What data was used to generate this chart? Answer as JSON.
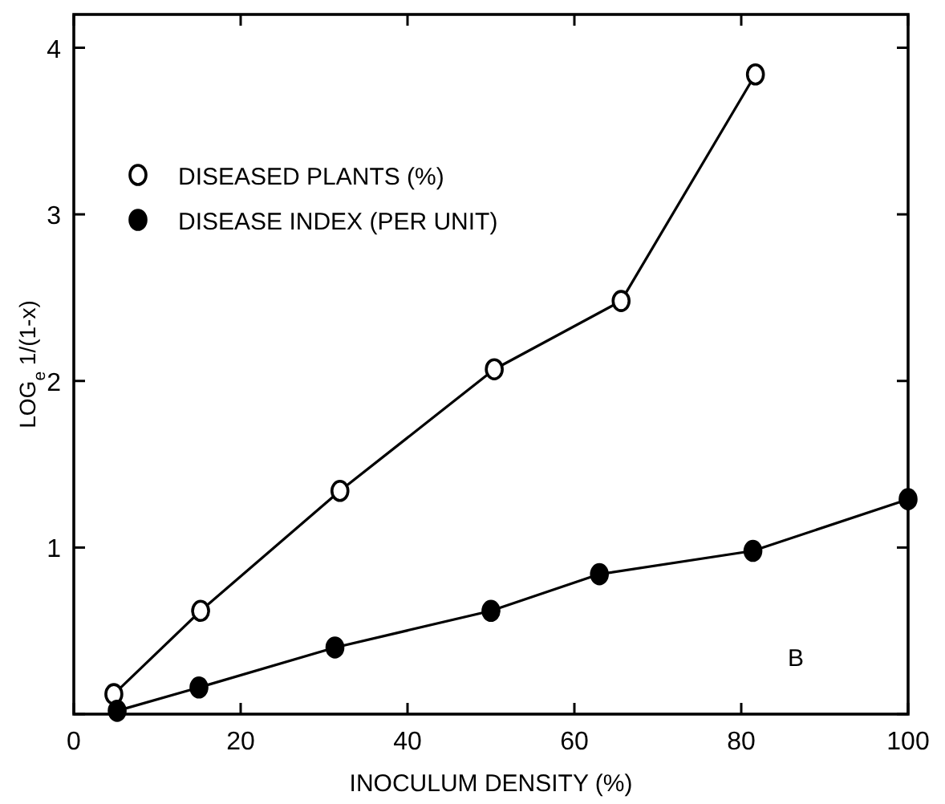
{
  "chart_data": {
    "type": "line",
    "xlabel": "INOCULUM DENSITY (%)",
    "ylabel": "LOG$_{e}$ 1/(1-x)",
    "xlim": [
      0,
      100
    ],
    "xticks": [
      0,
      20,
      40,
      60,
      80,
      100
    ],
    "ylim": [
      0,
      4.2
    ],
    "yticks": [
      {
        "value": 0,
        "label": null
      },
      1,
      2,
      3,
      4
    ],
    "legend": "top left",
    "grid": false,
    "marker": "circle",
    "line_style": "solid",
    "annotations": [
      "B"
    ],
    "series": [
      {
        "name": "DISEASED PLANTS (%)",
        "color": "#ffffff",
        "x": [
          4.8,
          15.2,
          31.9,
          50.4,
          65.6,
          81.7
        ],
        "values": [
          0.12,
          0.62,
          1.34,
          2.07,
          2.48,
          3.84
        ]
      },
      {
        "name": "DISEASE INDEX (PER UNIT)",
        "color": "#000000",
        "x": [
          5.2,
          15,
          31.3,
          50,
          63,
          81.4,
          100
        ],
        "values": [
          0.02,
          0.16,
          0.4,
          0.62,
          0.84,
          0.98,
          1.29
        ]
      }
    ]
  }
}
